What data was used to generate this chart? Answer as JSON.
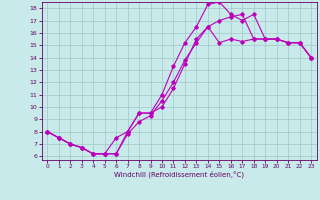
{
  "title": "",
  "xlabel": "Windchill (Refroidissement éolien,°C)",
  "bg_color": "#c8eaea",
  "grid_color": "#a8cccc",
  "line_color": "#bb00bb",
  "xlim": [
    -0.5,
    23.5
  ],
  "ylim": [
    5.7,
    18.5
  ],
  "xticks": [
    0,
    1,
    2,
    3,
    4,
    5,
    6,
    7,
    8,
    9,
    10,
    11,
    12,
    13,
    14,
    15,
    16,
    17,
    18,
    19,
    20,
    21,
    22,
    23
  ],
  "yticks": [
    6,
    7,
    8,
    9,
    10,
    11,
    12,
    13,
    14,
    15,
    16,
    17,
    18
  ],
  "line1_x": [
    0,
    1,
    2,
    3,
    4,
    5,
    6,
    7,
    8,
    9,
    10,
    11,
    12,
    13,
    14,
    15,
    16,
    17,
    18,
    19,
    20,
    21,
    22,
    23
  ],
  "line1_y": [
    8.0,
    7.5,
    7.0,
    6.7,
    6.2,
    6.2,
    6.2,
    7.8,
    8.8,
    9.3,
    10.5,
    12.0,
    13.8,
    15.2,
    16.5,
    15.2,
    15.5,
    15.3,
    15.5,
    15.5,
    15.5,
    15.2,
    15.2,
    14.0
  ],
  "line2_x": [
    0,
    1,
    2,
    3,
    4,
    5,
    6,
    7,
    8,
    9,
    10,
    11,
    12,
    13,
    14,
    15,
    16,
    17,
    18,
    19,
    20,
    21,
    22,
    23
  ],
  "line2_y": [
    8.0,
    7.5,
    7.0,
    6.7,
    6.2,
    6.2,
    7.5,
    8.0,
    9.5,
    9.5,
    11.0,
    13.3,
    15.2,
    16.5,
    18.3,
    18.5,
    17.5,
    17.0,
    17.5,
    15.5,
    15.5,
    15.2,
    15.2,
    14.0
  ],
  "line3_x": [
    0,
    1,
    2,
    3,
    4,
    5,
    6,
    7,
    8,
    9,
    10,
    11,
    12,
    13,
    14,
    15,
    16,
    17,
    18,
    19,
    20,
    21,
    22,
    23
  ],
  "line3_y": [
    8.0,
    7.5,
    7.0,
    6.7,
    6.2,
    6.2,
    6.2,
    8.0,
    9.5,
    9.5,
    10.0,
    11.5,
    13.5,
    15.5,
    16.5,
    17.0,
    17.3,
    17.5,
    15.5,
    15.5,
    15.5,
    15.2,
    15.2,
    14.0
  ]
}
